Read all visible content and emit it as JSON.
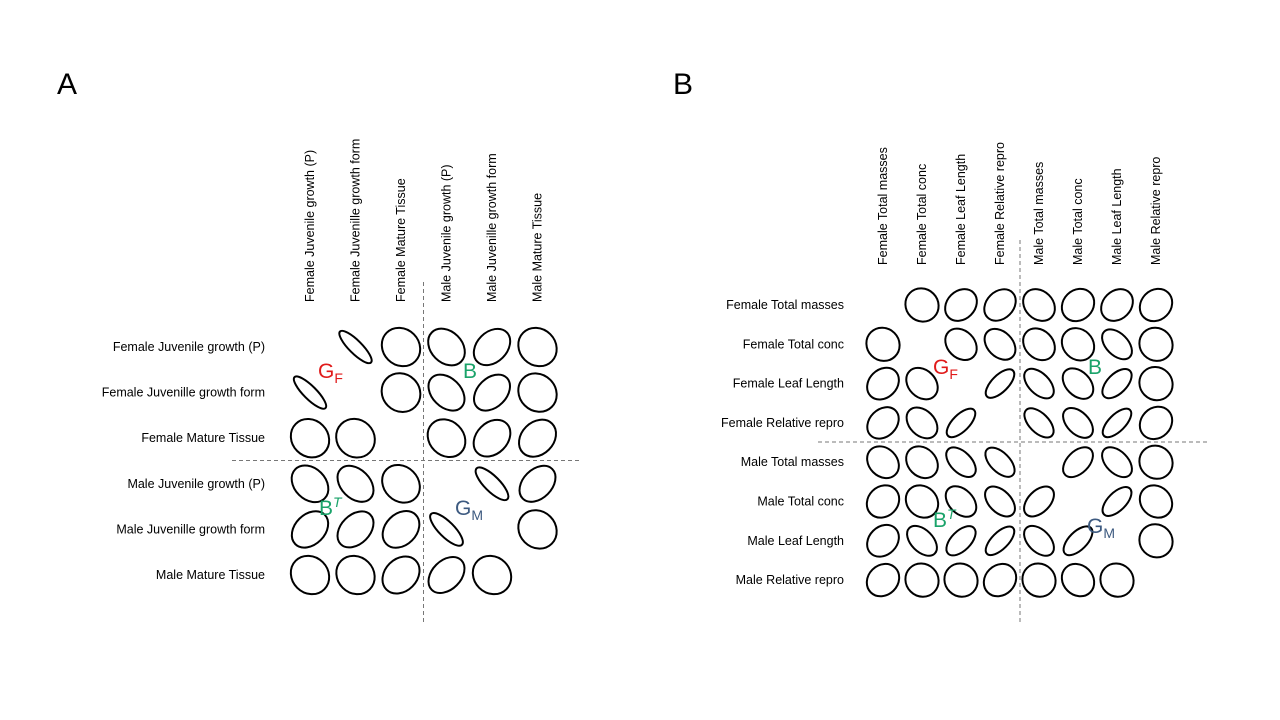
{
  "colors": {
    "gf": "#e01a1a",
    "b": "#1aa36a",
    "gm": "#3d5a80",
    "ink": "#000000",
    "divider": "#777777"
  },
  "panels": {
    "A": {
      "letter": "A",
      "rows": [
        "Female Juvenile growth (P)",
        "Female Juvenille growth form",
        "Female Mature Tissue",
        "Male Juvenile growth (P)",
        "Male Juvenille growth form",
        "Male Mature Tissue"
      ],
      "cols": [
        "Female Juvenile growth (P)",
        "Female Juvenille growth form",
        "Female Mature Tissue",
        "Male Juvenile growth (P)",
        "Male Juvenille growth form",
        "Male Mature Tissue"
      ],
      "block_labels": {
        "gf": {
          "base": "G",
          "sub": "F"
        },
        "b": {
          "base": "B"
        },
        "bt": {
          "base": "B",
          "sup": "T"
        },
        "gm": {
          "base": "G",
          "sub": "M"
        }
      },
      "matrix": [
        [
          null,
          0.95,
          0.1,
          0.35,
          -0.4,
          0.1
        ],
        [
          0.95,
          null,
          0.05,
          0.45,
          -0.45,
          0.1
        ],
        [
          0.1,
          0.05,
          null,
          0.2,
          -0.35,
          -0.3
        ],
        [
          0.35,
          0.45,
          0.2,
          null,
          0.9,
          -0.45
        ],
        [
          -0.4,
          -0.45,
          -0.35,
          0.9,
          null,
          0.1
        ],
        [
          0.1,
          0.1,
          -0.3,
          -0.45,
          0.1,
          null
        ]
      ]
    },
    "B": {
      "letter": "B",
      "rows": [
        "Female Total masses",
        "Female Total conc",
        "Female Leaf Length",
        "Female Relative repro",
        "Male Total masses",
        "Male Total conc",
        "Male Leaf Length",
        "Male Relative repro"
      ],
      "cols": [
        "Female Total masses",
        "Female Total conc",
        "Female Leaf Length",
        "Female Relative repro",
        "Male Total masses",
        "Male Total conc",
        "Male Leaf Length",
        "Male Relative repro"
      ],
      "block_labels": {
        "gf": {
          "base": "G",
          "sub": "F"
        },
        "b": {
          "base": "B"
        },
        "bt": {
          "base": "B",
          "sup": "T"
        },
        "gm": {
          "base": "G",
          "sub": "M"
        }
      },
      "matrix": [
        [
          null,
          0.05,
          -0.3,
          -0.35,
          0.3,
          -0.2,
          -0.3,
          -0.2
        ],
        [
          0.05,
          null,
          0.35,
          0.45,
          0.3,
          0.2,
          0.6,
          0.05
        ],
        [
          -0.3,
          0.35,
          null,
          -0.8,
          0.65,
          0.5,
          -0.7,
          0.05
        ],
        [
          -0.35,
          0.45,
          -0.8,
          null,
          0.7,
          0.6,
          -0.8,
          -0.2
        ],
        [
          0.3,
          0.3,
          0.65,
          0.7,
          null,
          -0.6,
          0.6,
          0.05
        ],
        [
          -0.2,
          0.2,
          0.5,
          0.6,
          -0.6,
          null,
          -0.75,
          0.2
        ],
        [
          -0.3,
          0.6,
          -0.7,
          -0.8,
          0.6,
          -0.75,
          null,
          0.05
        ],
        [
          -0.2,
          0.05,
          0.05,
          -0.2,
          0.05,
          0.2,
          0.05,
          null
        ]
      ]
    }
  }
}
